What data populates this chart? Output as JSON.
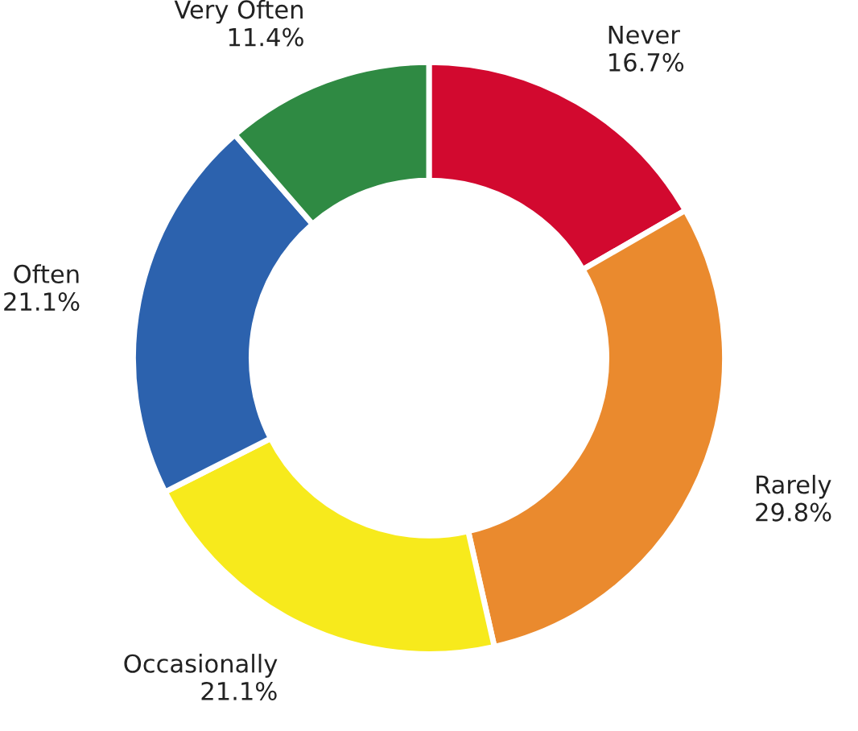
{
  "chart_data": {
    "type": "donut",
    "categories": [
      "Never",
      "Rarely",
      "Occasionally",
      "Often",
      "Very Often"
    ],
    "values": [
      16.7,
      29.8,
      21.1,
      21.1,
      11.4
    ],
    "value_labels": [
      "16.7%",
      "29.8%",
      "21.1%",
      "21.1%",
      "11.4%"
    ],
    "colors": [
      "#d2092f",
      "#ea8a2e",
      "#f7ea1c",
      "#2c62ae",
      "#2f8a43"
    ],
    "legend": false
  }
}
